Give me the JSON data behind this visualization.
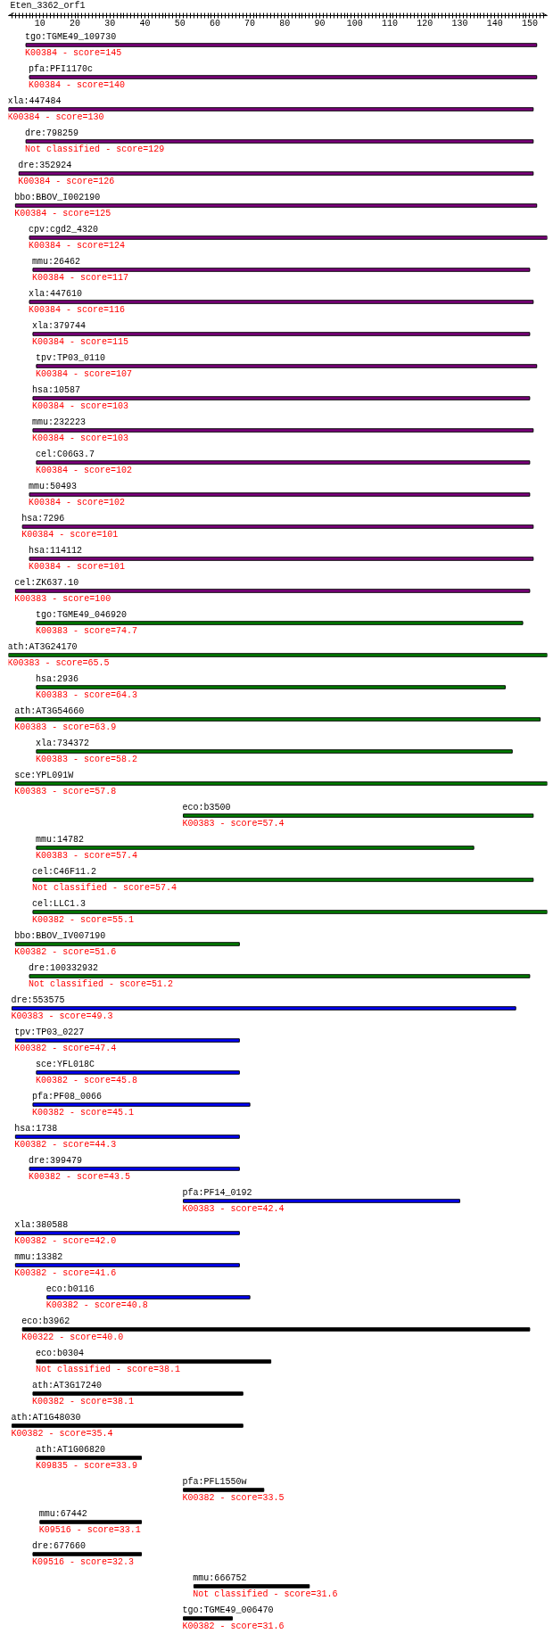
{
  "chart_data": {
    "type": "bar",
    "orientation": "horizontal",
    "title": "Eten_3362_orf1",
    "tick_labels": "x",
    "categories": [
      "tgo:TGME49_109730",
      "pfa:PFI1170c",
      "xla:447484",
      "dre:798259",
      "dre:352924",
      "bbo:BBOV_I002190",
      "cpv:cgd2_4320",
      "mmu:26462",
      "xla:447610",
      "xla:379744",
      "tpv:TP03_0110",
      "hsa:10587",
      "mmu:232223",
      "cel:C06G3.7",
      "mmu:50493",
      "hsa:7296",
      "hsa:114112",
      "cel:ZK637.10",
      "tgo:TGME49_046920",
      "ath:AT3G24170",
      "hsa:2936",
      "ath:AT3G54660",
      "xla:734372",
      "sce:YPL091W",
      "eco:b3500",
      "mmu:14782",
      "cel:C46F11.2",
      "cel:LLC1.3",
      "bbo:BBOV_IV007190",
      "dre:100332932",
      "dre:553575",
      "tpv:TP03_0227",
      "sce:YFL018C",
      "pfa:PF08_0066",
      "hsa:1738",
      "dre:399479",
      "pfa:PF14_0192",
      "xla:380588",
      "mmu:13382",
      "eco:b0116",
      "eco:b3962",
      "eco:b0304",
      "ath:AT3G17240",
      "ath:AT1G48030",
      "ath:AT1G06820",
      "pfa:PFL1550w",
      "mmu:67442",
      "dre:677660",
      "mmu:666752",
      "tgo:TGME49_006470"
    ],
    "base": [
      6,
      7,
      1,
      6,
      4,
      3,
      7,
      8,
      7,
      8,
      9,
      8,
      8,
      9,
      7,
      5,
      7,
      3,
      9,
      1,
      9,
      3,
      9,
      3,
      51,
      9,
      8,
      8,
      3,
      7,
      2,
      3,
      9,
      8,
      3,
      7,
      51,
      3,
      3,
      12,
      5,
      9,
      8,
      2,
      9,
      51,
      10,
      8,
      54,
      51
    ],
    "values": [
      146,
      145,
      150,
      145,
      147,
      149,
      148,
      142,
      144,
      142,
      143,
      142,
      143,
      141,
      143,
      146,
      144,
      147,
      139,
      154,
      134,
      150,
      136,
      152,
      100,
      125,
      143,
      147,
      64,
      143,
      144,
      64,
      58,
      62,
      64,
      60,
      79,
      64,
      64,
      58,
      145,
      67,
      60,
      66,
      30,
      23,
      29,
      31,
      33,
      14
    ],
    "colors": [
      "#800080",
      "#800080",
      "#800080",
      "#800080",
      "#800080",
      "#800080",
      "#800080",
      "#800080",
      "#800080",
      "#800080",
      "#800080",
      "#800080",
      "#800080",
      "#800080",
      "#800080",
      "#800080",
      "#800080",
      "#800080",
      "#008000",
      "#008000",
      "#008000",
      "#008000",
      "#008000",
      "#008000",
      "#008000",
      "#008000",
      "#008000",
      "#008000",
      "#008000",
      "#008000",
      "#0000ff",
      "#0000ff",
      "#0000ff",
      "#0000ff",
      "#0000ff",
      "#0000ff",
      "#0000ff",
      "#0000ff",
      "#0000ff",
      "#0000ff",
      "#000000",
      "#000000",
      "#000000",
      "#000000",
      "#000000",
      "#000000",
      "#000000",
      "#000000",
      "#000000",
      "#000000"
    ],
    "annotations": [
      "K00384 - score=145",
      "K00384 - score=140",
      "K00384 - score=130",
      "Not classified - score=129",
      "K00384 - score=126",
      "K00384 - score=125",
      "K00384 - score=124",
      "K00384 - score=117",
      "K00384 - score=116",
      "K00384 - score=115",
      "K00384 - score=107",
      "K00384 - score=103",
      "K00384 - score=103",
      "K00384 - score=102",
      "K00384 - score=102",
      "K00384 - score=101",
      "K00384 - score=101",
      "K00383 - score=100",
      "K00383 - score=74.7",
      "K00383 - score=65.5",
      "K00383 - score=64.3",
      "K00383 - score=63.9",
      "K00383 - score=58.2",
      "K00383 - score=57.8",
      "K00383 - score=57.4",
      "K00383 - score=57.4",
      "Not classified - score=57.4",
      "K00382 - score=55.1",
      "K00382 - score=51.6",
      "Not classified - score=51.2",
      "K00383 - score=49.3",
      "K00382 - score=47.4",
      "K00382 - score=45.8",
      "K00382 - score=45.1",
      "K00382 - score=44.3",
      "K00382 - score=43.5",
      "K00383 - score=42.4",
      "K00382 - score=42.0",
      "K00382 - score=41.6",
      "K00382 - score=40.8",
      "K00322 - score=40.0",
      "Not classified - score=38.1",
      "K00382 - score=38.1",
      "K00382 - score=35.4",
      "K09835 - score=33.9",
      "K00382 - score=33.5",
      "K09516 - score=33.1",
      "K09516 - score=32.3",
      "Not classified - score=31.6",
      "K00382 - score=31.6"
    ],
    "xlim": [
      1,
      155
    ],
    "xticks": [
      {
        "value": 2,
        "label": null
      },
      {
        "value": 3,
        "label": null
      },
      {
        "value": 4,
        "label": null
      },
      {
        "value": 5,
        "label": null
      },
      {
        "value": 6,
        "label": null
      },
      {
        "value": 7,
        "label": null
      },
      {
        "value": 8,
        "label": null
      },
      {
        "value": 9,
        "label": null
      },
      10,
      {
        "value": 11,
        "label": null
      },
      {
        "value": 12,
        "label": null
      },
      {
        "value": 13,
        "label": null
      },
      {
        "value": 14,
        "label": null
      },
      {
        "value": 15,
        "label": null
      },
      {
        "value": 16,
        "label": null
      },
      {
        "value": 17,
        "label": null
      },
      {
        "value": 18,
        "label": null
      },
      {
        "value": 19,
        "label": null
      },
      20,
      {
        "value": 21,
        "label": null
      },
      {
        "value": 22,
        "label": null
      },
      {
        "value": 23,
        "label": null
      },
      {
        "value": 24,
        "label": null
      },
      {
        "value": 25,
        "label": null
      },
      {
        "value": 26,
        "label": null
      },
      {
        "value": 27,
        "label": null
      },
      {
        "value": 28,
        "label": null
      },
      {
        "value": 29,
        "label": null
      },
      30,
      {
        "value": 31,
        "label": null
      },
      {
        "value": 32,
        "label": null
      },
      {
        "value": 33,
        "label": null
      },
      {
        "value": 34,
        "label": null
      },
      {
        "value": 35,
        "label": null
      },
      {
        "value": 36,
        "label": null
      },
      {
        "value": 37,
        "label": null
      },
      {
        "value": 38,
        "label": null
      },
      {
        "value": 39,
        "label": null
      },
      40,
      {
        "value": 41,
        "label": null
      },
      {
        "value": 42,
        "label": null
      },
      {
        "value": 43,
        "label": null
      },
      {
        "value": 44,
        "label": null
      },
      {
        "value": 45,
        "label": null
      },
      {
        "value": 46,
        "label": null
      },
      {
        "value": 47,
        "label": null
      },
      {
        "value": 48,
        "label": null
      },
      {
        "value": 49,
        "label": null
      },
      50,
      {
        "value": 51,
        "label": null
      },
      {
        "value": 52,
        "label": null
      },
      {
        "value": 53,
        "label": null
      },
      {
        "value": 54,
        "label": null
      },
      {
        "value": 55,
        "label": null
      },
      {
        "value": 56,
        "label": null
      },
      {
        "value": 57,
        "label": null
      },
      {
        "value": 58,
        "label": null
      },
      {
        "value": 59,
        "label": null
      },
      60,
      {
        "value": 61,
        "label": null
      },
      {
        "value": 62,
        "label": null
      },
      {
        "value": 63,
        "label": null
      },
      {
        "value": 64,
        "label": null
      },
      {
        "value": 65,
        "label": null
      },
      {
        "value": 66,
        "label": null
      },
      {
        "value": 67,
        "label": null
      },
      {
        "value": 68,
        "label": null
      },
      {
        "value": 69,
        "label": null
      },
      70,
      {
        "value": 71,
        "label": null
      },
      {
        "value": 72,
        "label": null
      },
      {
        "value": 73,
        "label": null
      },
      {
        "value": 74,
        "label": null
      },
      {
        "value": 75,
        "label": null
      },
      {
        "value": 76,
        "label": null
      },
      {
        "value": 77,
        "label": null
      },
      {
        "value": 78,
        "label": null
      },
      {
        "value": 79,
        "label": null
      },
      80,
      {
        "value": 81,
        "label": null
      },
      {
        "value": 82,
        "label": null
      },
      {
        "value": 83,
        "label": null
      },
      {
        "value": 84,
        "label": null
      },
      {
        "value": 85,
        "label": null
      },
      {
        "value": 86,
        "label": null
      },
      {
        "value": 87,
        "label": null
      },
      {
        "value": 88,
        "label": null
      },
      {
        "value": 89,
        "label": null
      },
      90,
      {
        "value": 91,
        "label": null
      },
      {
        "value": 92,
        "label": null
      },
      {
        "value": 93,
        "label": null
      },
      {
        "value": 94,
        "label": null
      },
      {
        "value": 95,
        "label": null
      },
      {
        "value": 96,
        "label": null
      },
      {
        "value": 97,
        "label": null
      },
      {
        "value": 98,
        "label": null
      },
      {
        "value": 99,
        "label": null
      },
      100,
      {
        "value": 101,
        "label": null
      },
      {
        "value": 102,
        "label": null
      },
      {
        "value": 103,
        "label": null
      },
      {
        "value": 104,
        "label": null
      },
      {
        "value": 105,
        "label": null
      },
      {
        "value": 106,
        "label": null
      },
      {
        "value": 107,
        "label": null
      },
      {
        "value": 108,
        "label": null
      },
      {
        "value": 109,
        "label": null
      },
      110,
      {
        "value": 111,
        "label": null
      },
      {
        "value": 112,
        "label": null
      },
      {
        "value": 113,
        "label": null
      },
      {
        "value": 114,
        "label": null
      },
      {
        "value": 115,
        "label": null
      },
      {
        "value": 116,
        "label": null
      },
      {
        "value": 117,
        "label": null
      },
      {
        "value": 118,
        "label": null
      },
      {
        "value": 119,
        "label": null
      },
      120,
      {
        "value": 121,
        "label": null
      },
      {
        "value": 122,
        "label": null
      },
      {
        "value": 123,
        "label": null
      },
      {
        "value": 124,
        "label": null
      },
      {
        "value": 125,
        "label": null
      },
      {
        "value": 126,
        "label": null
      },
      {
        "value": 127,
        "label": null
      },
      {
        "value": 128,
        "label": null
      },
      {
        "value": 129,
        "label": null
      },
      130,
      {
        "value": 131,
        "label": null
      },
      {
        "value": 132,
        "label": null
      },
      {
        "value": 133,
        "label": null
      },
      {
        "value": 134,
        "label": null
      },
      {
        "value": 135,
        "label": null
      },
      {
        "value": 136,
        "label": null
      },
      {
        "value": 137,
        "label": null
      },
      {
        "value": 138,
        "label": null
      },
      {
        "value": 139,
        "label": null
      },
      140,
      {
        "value": 141,
        "label": null
      },
      {
        "value": 142,
        "label": null
      },
      {
        "value": 143,
        "label": null
      },
      {
        "value": 144,
        "label": null
      },
      {
        "value": 145,
        "label": null
      },
      {
        "value": 146,
        "label": null
      },
      {
        "value": 147,
        "label": null
      },
      {
        "value": 148,
        "label": null
      },
      {
        "value": 149,
        "label": null
      },
      150,
      {
        "value": 151,
        "label": null
      },
      {
        "value": 152,
        "label": null
      },
      {
        "value": 153,
        "label": null
      },
      {
        "value": 154,
        "label": null
      }
    ]
  }
}
